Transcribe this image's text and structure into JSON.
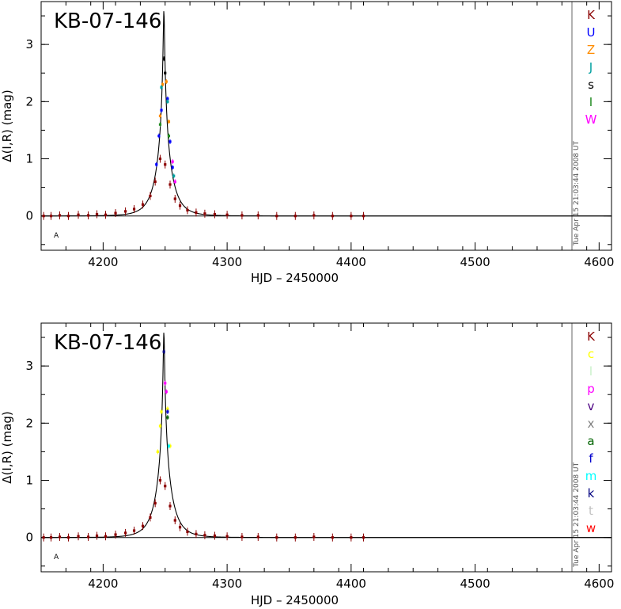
{
  "chart_data": [
    {
      "type": "scatter",
      "title": "KB-07-146",
      "xlabel": "HJD – 2450000",
      "ylabel": "Δ(I,R) (mag)",
      "xlim": [
        4150,
        4610
      ],
      "ylim": [
        -0.6,
        3.75
      ],
      "x_ticks": [
        "4200",
        "4300",
        "4400",
        "4500",
        "4600"
      ],
      "y_ticks": [
        "0",
        "1",
        "2",
        "3"
      ],
      "timestamp": "Tue Apr 15 21:03:44 2008 UT",
      "corner_label": "A",
      "model": {
        "t0": 4249.0,
        "u0": 0.036,
        "tE": 12.0
      },
      "baseline": 0,
      "legend": [
        {
          "label": "K",
          "color": "#8b0000"
        },
        {
          "label": "U",
          "color": "#0000ff"
        },
        {
          "label": "Z",
          "color": "#ff8c00"
        },
        {
          "label": "J",
          "color": "#00a0a0"
        },
        {
          "label": "s",
          "color": "#000000"
        },
        {
          "label": "I",
          "color": "#228b22"
        },
        {
          "label": "W",
          "color": "#ff00ff"
        }
      ],
      "series": [
        {
          "name": "K",
          "color": "#8b0000",
          "x": [
            4152,
            4158,
            4165,
            4172,
            4180,
            4188,
            4195,
            4202,
            4210,
            4218,
            4225,
            4232,
            4238,
            4242,
            4246,
            4250,
            4254,
            4258,
            4262,
            4268,
            4275,
            4282,
            4290,
            4300,
            4312,
            4325,
            4340,
            4355,
            4370,
            4385,
            4400,
            4410
          ],
          "y": [
            0.0,
            0.0,
            0.01,
            0.0,
            0.02,
            0.01,
            0.03,
            0.02,
            0.05,
            0.08,
            0.12,
            0.2,
            0.35,
            0.6,
            1.0,
            0.9,
            0.55,
            0.3,
            0.18,
            0.1,
            0.06,
            0.04,
            0.03,
            0.02,
            0.01,
            0.01,
            0.0,
            0.0,
            0.01,
            0.0,
            0.0,
            0.0
          ]
        },
        {
          "name": "U",
          "color": "#0000ff",
          "x": [
            4243,
            4245,
            4247,
            4252,
            4254,
            4256
          ],
          "y": [
            0.9,
            1.4,
            1.85,
            2.05,
            1.3,
            0.85
          ]
        },
        {
          "name": "Z",
          "color": "#ff8c00",
          "x": [
            4246,
            4248,
            4251,
            4253
          ],
          "y": [
            1.75,
            2.3,
            2.35,
            1.65
          ]
        },
        {
          "name": "J",
          "color": "#00a0a0",
          "x": [
            4247,
            4252,
            4257
          ],
          "y": [
            2.25,
            2.0,
            0.7
          ]
        },
        {
          "name": "s",
          "color": "#000000",
          "x": [
            4249,
            4250
          ],
          "y": [
            2.75,
            2.5
          ]
        },
        {
          "name": "I",
          "color": "#228b22",
          "x": [
            4246,
            4253
          ],
          "y": [
            1.6,
            1.4
          ]
        },
        {
          "name": "W",
          "color": "#ff00ff",
          "x": [
            4256,
            4258
          ],
          "y": [
            0.95,
            0.6
          ]
        }
      ]
    },
    {
      "type": "scatter",
      "title": "KB-07-146",
      "xlabel": "HJD – 2450000",
      "ylabel": "Δ(I,R) (mag)",
      "xlim": [
        4150,
        4610
      ],
      "ylim": [
        -0.6,
        3.75
      ],
      "x_ticks": [
        "4200",
        "4300",
        "4400",
        "4500",
        "4600"
      ],
      "y_ticks": [
        "0",
        "1",
        "2",
        "3"
      ],
      "timestamp": "Tue Apr 15 21:03:44 2008 UT",
      "corner_label": "A",
      "model": {
        "t0": 4249.0,
        "u0": 0.036,
        "tE": 12.0
      },
      "baseline": 0,
      "legend": [
        {
          "label": "K",
          "color": "#8b0000"
        },
        {
          "label": "c",
          "color": "#ffff00"
        },
        {
          "label": "l",
          "color": "#c8f0c8"
        },
        {
          "label": "p",
          "color": "#ff00ff"
        },
        {
          "label": "v",
          "color": "#4b0082"
        },
        {
          "label": "x",
          "color": "#808080"
        },
        {
          "label": "a",
          "color": "#006400"
        },
        {
          "label": "f",
          "color": "#0000cd"
        },
        {
          "label": "m",
          "color": "#00ffff"
        },
        {
          "label": "k",
          "color": "#000080"
        },
        {
          "label": "t",
          "color": "#c0c0c0"
        },
        {
          "label": "w",
          "color": "#ff0000"
        }
      ],
      "series": [
        {
          "name": "K",
          "color": "#8b0000",
          "x": [
            4152,
            4158,
            4165,
            4172,
            4180,
            4188,
            4195,
            4202,
            4210,
            4218,
            4225,
            4232,
            4238,
            4242,
            4246,
            4250,
            4254,
            4258,
            4262,
            4268,
            4275,
            4282,
            4290,
            4300,
            4312,
            4325,
            4340,
            4355,
            4370,
            4385,
            4400,
            4410
          ],
          "y": [
            0.0,
            0.0,
            0.01,
            0.0,
            0.02,
            0.01,
            0.03,
            0.02,
            0.05,
            0.08,
            0.12,
            0.2,
            0.35,
            0.6,
            1.0,
            0.9,
            0.55,
            0.3,
            0.18,
            0.1,
            0.06,
            0.04,
            0.03,
            0.02,
            0.01,
            0.01,
            0.0,
            0.0,
            0.01,
            0.0,
            0.0,
            0.0
          ]
        },
        {
          "name": "c",
          "color": "#ffff00",
          "x": [
            4244,
            4246,
            4247,
            4252,
            4254
          ],
          "y": [
            1.5,
            1.95,
            2.2,
            2.25,
            1.6
          ]
        },
        {
          "name": "p",
          "color": "#ff00ff",
          "x": [
            4250,
            4251
          ],
          "y": [
            2.7,
            2.55
          ]
        },
        {
          "name": "a",
          "color": "#006400",
          "x": [
            4252
          ],
          "y": [
            2.1
          ]
        },
        {
          "name": "f",
          "color": "#0000cd",
          "x": [
            4252
          ],
          "y": [
            2.2
          ]
        },
        {
          "name": "m",
          "color": "#00ffff",
          "x": [
            4253
          ],
          "y": [
            1.6
          ]
        },
        {
          "name": "k",
          "color": "#000080",
          "x": [
            4249
          ],
          "y": [
            3.25
          ]
        }
      ]
    }
  ]
}
